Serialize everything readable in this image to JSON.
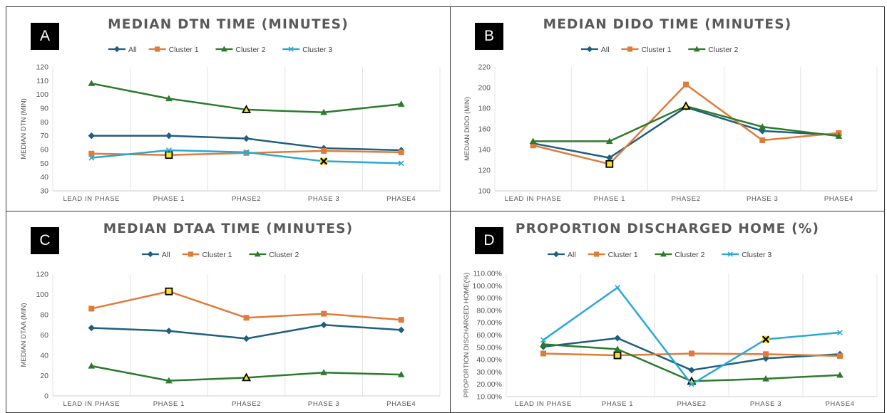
{
  "colors": {
    "All": "#1f5f7f",
    "Cluster 1": "#e07b3a",
    "Cluster 2": "#2d7a2d",
    "Cluster 3": "#29a8d6"
  },
  "chart_data": [
    {
      "id": "a",
      "badge": "A",
      "type": "line",
      "title": "MEDIAN DTN TIME (MINUTES)",
      "xlabel": "",
      "ylabel": "MEDIAN DTN (MIN)",
      "categories": [
        "LEAD IN PHASE",
        "PHASE 1",
        "PHASE2",
        "PHASE 3",
        "PHASE4"
      ],
      "ylim": [
        30,
        120
      ],
      "yticks": [
        30,
        40,
        50,
        60,
        70,
        80,
        90,
        100,
        110,
        120
      ],
      "legend_position": "top-center",
      "grid": "vertical",
      "series": [
        {
          "name": "All",
          "marker": "diamond",
          "values": [
            70,
            70,
            68,
            61,
            59.5
          ]
        },
        {
          "name": "Cluster 1",
          "marker": "square",
          "values": [
            57,
            56,
            57.5,
            59,
            58
          ]
        },
        {
          "name": "Cluster 2",
          "marker": "triangle",
          "values": [
            108,
            97,
            89,
            87,
            93
          ]
        },
        {
          "name": "Cluster 3",
          "marker": "x",
          "values": [
            54,
            59.5,
            58,
            51.5,
            50
          ]
        }
      ],
      "highlights": [
        {
          "series": "Cluster 1",
          "index": 1
        },
        {
          "series": "Cluster 2",
          "index": 2
        },
        {
          "series": "Cluster 3",
          "index": 3
        }
      ]
    },
    {
      "id": "b",
      "badge": "B",
      "type": "line",
      "title": "MEDIAN DIDO TIME (MINUTES)",
      "xlabel": "",
      "ylabel": "MEDIAN DIDO (MIN)",
      "categories": [
        "LEAD IN PHASE",
        "PHASE 1",
        "PHASE2",
        "PHASE 3",
        "PHASE4"
      ],
      "ylim": [
        100,
        220
      ],
      "yticks": [
        100,
        120,
        140,
        160,
        180,
        200,
        220
      ],
      "legend_position": "top-center",
      "grid": "vertical",
      "series": [
        {
          "name": "All",
          "marker": "diamond",
          "values": [
            146,
            132,
            181,
            158,
            154
          ]
        },
        {
          "name": "Cluster 1",
          "marker": "square",
          "values": [
            144,
            126,
            203,
            149,
            156
          ]
        },
        {
          "name": "Cluster 2",
          "marker": "triangle",
          "values": [
            148,
            148,
            182,
            162,
            153
          ]
        }
      ],
      "highlights": [
        {
          "series": "Cluster 1",
          "index": 1
        },
        {
          "series": "Cluster 2",
          "index": 2
        }
      ]
    },
    {
      "id": "c",
      "badge": "C",
      "type": "line",
      "title": "MEDIAN DTAA TIME (MINUTES)",
      "xlabel": "",
      "ylabel": "MEDIAN DTAA (MIN)",
      "categories": [
        "LEAD IN PHASE",
        "PHASE 1",
        "PHASE2",
        "PHASE 3",
        "PHASE4"
      ],
      "ylim": [
        0,
        120
      ],
      "yticks": [
        0,
        20,
        40,
        60,
        80,
        100,
        120
      ],
      "legend_position": "top-center",
      "grid": "vertical",
      "series": [
        {
          "name": "All",
          "marker": "diamond",
          "values": [
            67,
            64,
            56.5,
            70,
            65
          ]
        },
        {
          "name": "Cluster 1",
          "marker": "square",
          "values": [
            86,
            103,
            77,
            81,
            75
          ]
        },
        {
          "name": "Cluster 2",
          "marker": "triangle",
          "values": [
            29.5,
            15,
            18,
            23,
            21
          ]
        }
      ],
      "highlights": [
        {
          "series": "Cluster 1",
          "index": 1
        },
        {
          "series": "Cluster 2",
          "index": 2
        }
      ]
    },
    {
      "id": "d",
      "badge": "D",
      "type": "line",
      "title": "PROPORTION  DISCHARGED HOME (%)",
      "xlabel": "",
      "ylabel": "PROPORTION DISCHARGED HOME(%)",
      "categories": [
        "LEAD IN PHASE",
        "PHASE 1",
        "PHASE2",
        "PHASE 3",
        "PHASE4"
      ],
      "ylim": [
        10,
        110
      ],
      "yticks": [
        10,
        20,
        30,
        40,
        50,
        60,
        70,
        80,
        90,
        100,
        110
      ],
      "ytick_format": "percent2",
      "legend_position": "top-center",
      "grid": "vertical",
      "series": [
        {
          "name": "All",
          "marker": "diamond",
          "values": [
            50.5,
            57.5,
            31.5,
            41,
            44.5
          ]
        },
        {
          "name": "Cluster 1",
          "marker": "square",
          "values": [
            45,
            43.5,
            45,
            44.5,
            43
          ]
        },
        {
          "name": "Cluster 2",
          "marker": "triangle",
          "values": [
            52.5,
            48.5,
            22.5,
            24.5,
            27.5
          ]
        },
        {
          "name": "Cluster 3",
          "marker": "x",
          "values": [
            56,
            98.5,
            20,
            56.5,
            62
          ]
        }
      ],
      "highlights": [
        {
          "series": "Cluster 1",
          "index": 1
        },
        {
          "series": "Cluster 2",
          "index": 2
        },
        {
          "series": "Cluster 3",
          "index": 3
        }
      ]
    }
  ]
}
